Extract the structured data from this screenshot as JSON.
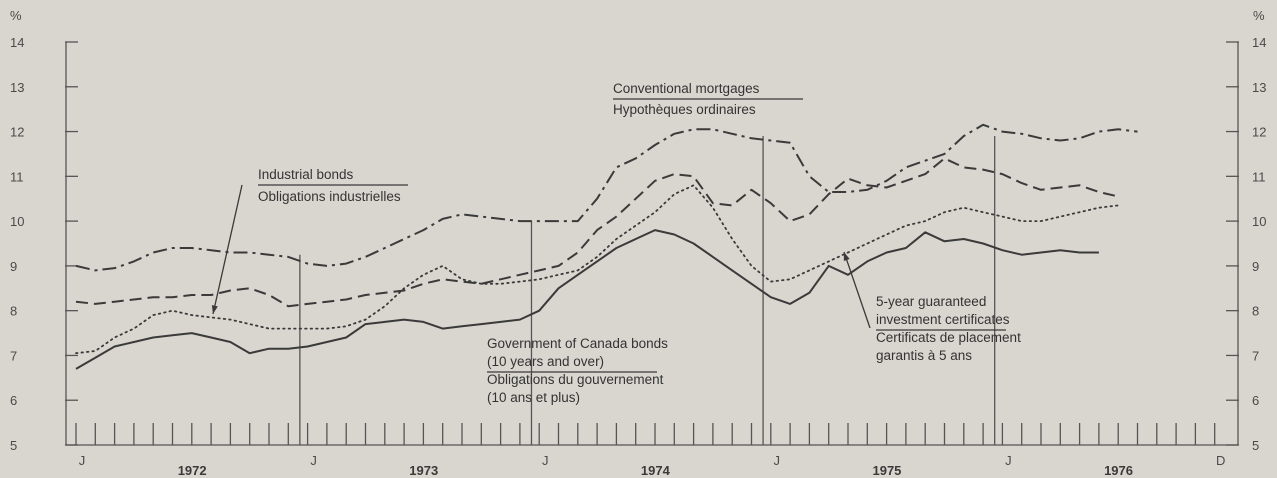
{
  "chart_data": {
    "type": "line",
    "title": "",
    "xlabel": "",
    "ylabel": "%",
    "ylim": [
      5,
      14
    ],
    "x_range": [
      "1972-01",
      "1976-12"
    ],
    "y_ticks": [
      "5",
      "6",
      "7",
      "8",
      "9",
      "10",
      "11",
      "12",
      "13",
      "14"
    ],
    "y_unit": "%",
    "grid": false,
    "x_month_labels": [
      {
        "text": "J",
        "month": 0
      },
      {
        "text": "J",
        "month": 12
      },
      {
        "text": "J",
        "month": 24
      },
      {
        "text": "J",
        "month": 36
      },
      {
        "text": "J",
        "month": 48
      },
      {
        "text": "D",
        "month": 59
      }
    ],
    "x_year_labels": [
      {
        "text": "1972",
        "month": 5.5
      },
      {
        "text": "1973",
        "month": 17.5
      },
      {
        "text": "1974",
        "month": 29.5
      },
      {
        "text": "1975",
        "month": 41.5
      },
      {
        "text": "1976",
        "month": 53.5
      }
    ],
    "series": [
      {
        "name": "Conventional mortgages / Hypothèques ordinaires",
        "style": "dash-dot",
        "x_start_month": 0,
        "values": [
          9.0,
          8.9,
          8.95,
          9.1,
          9.3,
          9.4,
          9.4,
          9.35,
          9.3,
          9.3,
          9.25,
          9.2,
          9.05,
          9.0,
          9.05,
          9.2,
          9.4,
          9.6,
          9.8,
          10.05,
          10.15,
          10.1,
          10.05,
          10.0,
          10.0,
          10.0,
          10.0,
          10.5,
          11.2,
          11.4,
          11.7,
          11.95,
          12.05,
          12.05,
          11.95,
          11.85,
          11.8,
          11.75,
          11.0,
          10.65,
          10.65,
          10.7,
          10.9,
          11.2,
          11.35,
          11.5,
          11.9,
          12.15,
          12.0,
          11.95,
          11.85,
          11.8,
          11.85,
          12.0,
          12.05,
          12.0
        ]
      },
      {
        "name": "Industrial bonds / Obligations industrielles",
        "style": "dashed",
        "x_start_month": 0,
        "values": [
          8.2,
          8.15,
          8.2,
          8.25,
          8.3,
          8.3,
          8.35,
          8.35,
          8.45,
          8.5,
          8.35,
          8.1,
          8.15,
          8.2,
          8.25,
          8.35,
          8.4,
          8.45,
          8.6,
          8.7,
          8.65,
          8.6,
          8.7,
          8.8,
          8.9,
          9.0,
          9.3,
          9.8,
          10.1,
          10.5,
          10.9,
          11.05,
          11.0,
          10.4,
          10.35,
          10.7,
          10.4,
          10.0,
          10.15,
          10.6,
          10.95,
          10.8,
          10.75,
          10.9,
          11.05,
          11.4,
          11.2,
          11.15,
          11.05,
          10.85,
          10.7,
          10.75,
          10.8,
          10.65,
          10.55
        ]
      },
      {
        "name": "5-year guaranteed investment certificates / Certificats de placement garantis à 5 ans",
        "style": "dotted",
        "x_start_month": 0,
        "values": [
          7.05,
          7.1,
          7.4,
          7.6,
          7.9,
          8.0,
          7.9,
          7.85,
          7.8,
          7.7,
          7.6,
          7.6,
          7.6,
          7.6,
          7.65,
          7.8,
          8.1,
          8.5,
          8.8,
          9.0,
          8.7,
          8.6,
          8.6,
          8.65,
          8.7,
          8.8,
          8.9,
          9.2,
          9.6,
          9.9,
          10.2,
          10.6,
          10.8,
          10.3,
          9.6,
          9.0,
          8.65,
          8.7,
          8.9,
          9.1,
          9.3,
          9.5,
          9.7,
          9.9,
          10.0,
          10.2,
          10.3,
          10.2,
          10.1,
          10.0,
          10.0,
          10.1,
          10.2,
          10.3,
          10.35
        ]
      },
      {
        "name": "Government of Canada bonds (10 years and over) / Obligations du gouvernement (10 ans et plus)",
        "style": "solid",
        "x_start_month": 0,
        "values": [
          6.7,
          6.95,
          7.2,
          7.3,
          7.4,
          7.45,
          7.5,
          7.4,
          7.3,
          7.05,
          7.15,
          7.15,
          7.2,
          7.3,
          7.4,
          7.7,
          7.75,
          7.8,
          7.75,
          7.6,
          7.65,
          7.7,
          7.75,
          7.8,
          8.0,
          8.5,
          8.8,
          9.1,
          9.4,
          9.6,
          9.8,
          9.7,
          9.5,
          9.2,
          8.9,
          8.6,
          8.3,
          8.15,
          8.4,
          9.0,
          8.8,
          9.1,
          9.3,
          9.4,
          9.75,
          9.55,
          9.6,
          9.5,
          9.35,
          9.25,
          9.3,
          9.35,
          9.3,
          9.3
        ]
      }
    ],
    "annotations": [
      {
        "id": "mortgage",
        "lines": [
          "Conventional mortgages",
          "Hypothèques ordinaires"
        ]
      },
      {
        "id": "industrial",
        "lines": [
          "Industrial bonds",
          "Obligations industrielles"
        ]
      },
      {
        "id": "goc",
        "lines": [
          "Government of Canada bonds",
          "(10 years and over)",
          "Obligations du gouvernement",
          "(10 ans et plus)"
        ]
      },
      {
        "id": "gic",
        "lines": [
          "5-year guaranteed",
          "investment certificates",
          "Certificats de placement",
          "garantis à 5 ans"
        ]
      }
    ],
    "colors": {
      "line": "#3a3a3a",
      "background": "#d9d6d0"
    }
  }
}
